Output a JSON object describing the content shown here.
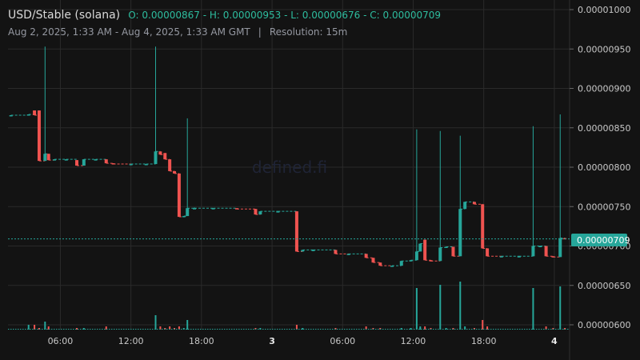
{
  "header": {
    "symbol": "USD/Stable (solana)",
    "ohlc": "O: 0.00000867 - H: 0.00000953 - L: 0.00000676 - C: 0.00000709",
    "range": "Aug 2, 2025, 1:33 AM - Aug 4, 2025, 1:33 AM GMT",
    "separator": "|",
    "resolution": "Resolution: 15m"
  },
  "watermark": "defined.fi",
  "colors": {
    "up": "#26a69a",
    "down": "#ef5350",
    "background": "#131313",
    "grid": "#2a2a2a"
  },
  "chart_data": {
    "type": "candlestick",
    "x_tick_labels": [
      "06:00",
      "12:00",
      "18:00",
      "3",
      "06:00",
      "12:00",
      "18:00",
      "4"
    ],
    "x_tick_hours": [
      6,
      12,
      18,
      24,
      30,
      36,
      42,
      48
    ],
    "y_tick_labels": [
      "0.00000600",
      "0.00000650",
      "0.00000700",
      "0.00000750",
      "0.00000800",
      "0.00000850",
      "0.00000900",
      "0.00000950",
      "0.00001000"
    ],
    "y_ticks": [
      6e-06,
      6.5e-06,
      7e-06,
      7.5e-06,
      8e-06,
      8.5e-06,
      9e-06,
      9.5e-06,
      1e-05
    ],
    "ylim": [
      5.93e-06,
      1e-05
    ],
    "xlim_hours": [
      1.55,
      49.3
    ],
    "last_price_label": "0.00000709",
    "last_price": 7.09e-06,
    "candles": [
      {
        "t": 1.8,
        "o": 8.66e-06,
        "h": 8.66e-06,
        "l": 8.66e-06,
        "c": 8.66e-06,
        "v": 0
      },
      {
        "t": 3.3,
        "o": 8.66e-06,
        "h": 8.67e-06,
        "l": 8.66e-06,
        "c": 8.67e-06,
        "v": 0.3
      },
      {
        "t": 3.8,
        "o": 8.72e-06,
        "h": 8.72e-06,
        "l": 8.66e-06,
        "c": 8.66e-06,
        "v": 0.3
      },
      {
        "t": 4.2,
        "o": 8.72e-06,
        "h": 8.72e-06,
        "l": 8.08e-06,
        "c": 8.08e-06,
        "v": 0.1
      },
      {
        "t": 4.7,
        "o": 8.08e-06,
        "h": 9.53e-06,
        "l": 8.08e-06,
        "c": 8.17e-06,
        "v": 0.5
      },
      {
        "t": 5.0,
        "o": 8.17e-06,
        "h": 8.17e-06,
        "l": 8.09e-06,
        "c": 8.09e-06,
        "v": 0.2
      },
      {
        "t": 5.5,
        "o": 8.09e-06,
        "h": 8.1e-06,
        "l": 8.09e-06,
        "c": 8.1e-06,
        "v": 0
      },
      {
        "t": 6.5,
        "o": 8.1e-06,
        "h": 8.1e-06,
        "l": 8.1e-06,
        "c": 8.1e-06,
        "v": 0
      },
      {
        "t": 7.4,
        "o": 8.09e-06,
        "h": 8.09e-06,
        "l": 8.02e-06,
        "c": 8.02e-06,
        "v": 0.1
      },
      {
        "t": 8.0,
        "o": 8.02e-06,
        "h": 8.1e-06,
        "l": 8.02e-06,
        "c": 8.1e-06,
        "v": 0.1
      },
      {
        "t": 9.0,
        "o": 8.1e-06,
        "h": 8.1e-06,
        "l": 8.1e-06,
        "c": 8.1e-06,
        "v": 0
      },
      {
        "t": 9.9,
        "o": 8.1e-06,
        "h": 8.1e-06,
        "l": 8.05e-06,
        "c": 8.05e-06,
        "v": 0.2
      },
      {
        "t": 10.5,
        "o": 8.05e-06,
        "h": 8.05e-06,
        "l": 8.04e-06,
        "c": 8.04e-06,
        "v": 0
      },
      {
        "t": 12.0,
        "o": 8.04e-06,
        "h": 8.04e-06,
        "l": 8.04e-06,
        "c": 8.04e-06,
        "v": 0
      },
      {
        "t": 13.3,
        "o": 8.04e-06,
        "h": 8.04e-06,
        "l": 8.04e-06,
        "c": 8.04e-06,
        "v": 0
      },
      {
        "t": 14.1,
        "o": 8.04e-06,
        "h": 9.53e-06,
        "l": 8.04e-06,
        "c": 8.2e-06,
        "v": 0.9
      },
      {
        "t": 14.5,
        "o": 8.2e-06,
        "h": 8.2e-06,
        "l": 8.16e-06,
        "c": 8.16e-06,
        "v": 0.2
      },
      {
        "t": 14.9,
        "o": 8.18e-06,
        "h": 8.18e-06,
        "l": 8.1e-06,
        "c": 8.1e-06,
        "v": 0.1
      },
      {
        "t": 15.3,
        "o": 8.1e-06,
        "h": 8.1e-06,
        "l": 7.95e-06,
        "c": 7.95e-06,
        "v": 0.2
      },
      {
        "t": 15.7,
        "o": 7.95e-06,
        "h": 7.95e-06,
        "l": 7.92e-06,
        "c": 7.92e-06,
        "v": 0.1
      },
      {
        "t": 16.1,
        "o": 7.92e-06,
        "h": 7.92e-06,
        "l": 7.37e-06,
        "c": 7.37e-06,
        "v": 0.2
      },
      {
        "t": 16.5,
        "o": 7.37e-06,
        "h": 7.38e-06,
        "l": 7.37e-06,
        "c": 7.38e-06,
        "v": 0.1
      },
      {
        "t": 16.8,
        "o": 7.38e-06,
        "h": 8.62e-06,
        "l": 7.38e-06,
        "c": 7.48e-06,
        "v": 0.6
      },
      {
        "t": 17.4,
        "o": 7.48e-06,
        "h": 7.49e-06,
        "l": 7.48e-06,
        "c": 7.48e-06,
        "v": 0
      },
      {
        "t": 19.0,
        "o": 7.48e-06,
        "h": 7.48e-06,
        "l": 7.48e-06,
        "c": 7.48e-06,
        "v": 0
      },
      {
        "t": 21.0,
        "o": 7.48e-06,
        "h": 7.48e-06,
        "l": 7.47e-06,
        "c": 7.47e-06,
        "v": 0
      },
      {
        "t": 22.6,
        "o": 7.47e-06,
        "h": 7.47e-06,
        "l": 7.4e-06,
        "c": 7.4e-06,
        "v": 0.1
      },
      {
        "t": 23.0,
        "o": 7.4e-06,
        "h": 7.44e-06,
        "l": 7.4e-06,
        "c": 7.44e-06,
        "v": 0.1
      },
      {
        "t": 24.5,
        "o": 7.44e-06,
        "h": 7.44e-06,
        "l": 7.44e-06,
        "c": 7.44e-06,
        "v": 0
      },
      {
        "t": 26.1,
        "o": 7.44e-06,
        "h": 7.44e-06,
        "l": 6.93e-06,
        "c": 6.93e-06,
        "v": 0.3
      },
      {
        "t": 26.6,
        "o": 6.93e-06,
        "h": 6.95e-06,
        "l": 6.93e-06,
        "c": 6.95e-06,
        "v": 0.1
      },
      {
        "t": 27.5,
        "o": 6.95e-06,
        "h": 6.95e-06,
        "l": 6.95e-06,
        "c": 6.95e-06,
        "v": 0
      },
      {
        "t": 29.4,
        "o": 6.95e-06,
        "h": 6.95e-06,
        "l": 6.9e-06,
        "c": 6.9e-06,
        "v": 0.1
      },
      {
        "t": 30.5,
        "o": 6.9e-06,
        "h": 6.9e-06,
        "l": 6.9e-06,
        "c": 6.9e-06,
        "v": 0
      },
      {
        "t": 32.0,
        "o": 6.9e-06,
        "h": 6.9e-06,
        "l": 6.85e-06,
        "c": 6.85e-06,
        "v": 0.2
      },
      {
        "t": 32.6,
        "o": 6.85e-06,
        "h": 6.85e-06,
        "l": 6.79e-06,
        "c": 6.79e-06,
        "v": 0.1
      },
      {
        "t": 33.2,
        "o": 6.79e-06,
        "h": 6.79e-06,
        "l": 6.75e-06,
        "c": 6.75e-06,
        "v": 0.1
      },
      {
        "t": 34.2,
        "o": 6.75e-06,
        "h": 6.75e-06,
        "l": 6.75e-06,
        "c": 6.75e-06,
        "v": 0
      },
      {
        "t": 35.0,
        "o": 6.75e-06,
        "h": 6.81e-06,
        "l": 6.75e-06,
        "c": 6.81e-06,
        "v": 0.1
      },
      {
        "t": 35.8,
        "o": 6.81e-06,
        "h": 6.82e-06,
        "l": 6.81e-06,
        "c": 6.82e-06,
        "v": 0.1
      },
      {
        "t": 36.3,
        "o": 6.82e-06,
        "h": 8.48e-06,
        "l": 6.82e-06,
        "c": 6.93e-06,
        "v": 2.6
      },
      {
        "t": 36.6,
        "o": 6.93e-06,
        "h": 7.03e-06,
        "l": 6.93e-06,
        "c": 7.03e-06,
        "v": 0.2
      },
      {
        "t": 37.0,
        "o": 7.08e-06,
        "h": 7.08e-06,
        "l": 6.82e-06,
        "c": 6.82e-06,
        "v": 0.2
      },
      {
        "t": 37.5,
        "o": 6.82e-06,
        "h": 6.82e-06,
        "l": 6.81e-06,
        "c": 6.81e-06,
        "v": 0.1
      },
      {
        "t": 38.3,
        "o": 6.81e-06,
        "h": 8.46e-06,
        "l": 6.81e-06,
        "c": 6.98e-06,
        "v": 2.8
      },
      {
        "t": 38.8,
        "o": 6.98e-06,
        "h": 6.99e-06,
        "l": 6.98e-06,
        "c": 6.99e-06,
        "v": 0.1
      },
      {
        "t": 39.4,
        "o": 6.99e-06,
        "h": 6.99e-06,
        "l": 6.87e-06,
        "c": 6.87e-06,
        "v": 0.1
      },
      {
        "t": 40.0,
        "o": 6.87e-06,
        "h": 8.4e-06,
        "l": 6.87e-06,
        "c": 7.47e-06,
        "v": 3.0
      },
      {
        "t": 40.4,
        "o": 7.47e-06,
        "h": 7.56e-06,
        "l": 7.47e-06,
        "c": 7.56e-06,
        "v": 0.2
      },
      {
        "t": 41.2,
        "o": 7.56e-06,
        "h": 7.56e-06,
        "l": 7.53e-06,
        "c": 7.53e-06,
        "v": 0.1
      },
      {
        "t": 41.9,
        "o": 7.53e-06,
        "h": 7.53e-06,
        "l": 6.97e-06,
        "c": 6.97e-06,
        "v": 0.6
      },
      {
        "t": 42.3,
        "o": 6.97e-06,
        "h": 6.97e-06,
        "l": 6.87e-06,
        "c": 6.87e-06,
        "v": 0.2
      },
      {
        "t": 43.5,
        "o": 6.87e-06,
        "h": 6.87e-06,
        "l": 6.87e-06,
        "c": 6.87e-06,
        "v": 0
      },
      {
        "t": 45.0,
        "o": 6.87e-06,
        "h": 6.87e-06,
        "l": 6.87e-06,
        "c": 6.87e-06,
        "v": 0
      },
      {
        "t": 46.2,
        "o": 6.87e-06,
        "h": 8.52e-06,
        "l": 6.87e-06,
        "c": 7e-06,
        "v": 2.6
      },
      {
        "t": 46.8,
        "o": 7e-06,
        "h": 7e-06,
        "l": 7e-06,
        "c": 7e-06,
        "v": 0
      },
      {
        "t": 47.3,
        "o": 7e-06,
        "h": 7e-06,
        "l": 6.87e-06,
        "c": 6.87e-06,
        "v": 0.2
      },
      {
        "t": 47.9,
        "o": 6.87e-06,
        "h": 6.87e-06,
        "l": 6.86e-06,
        "c": 6.86e-06,
        "v": 0.1
      },
      {
        "t": 48.5,
        "o": 6.86e-06,
        "h": 8.67e-06,
        "l": 6.86e-06,
        "c": 7.1e-06,
        "v": 2.7
      },
      {
        "t": 48.9,
        "o": 7.1e-06,
        "h": 7.1e-06,
        "l": 7.09e-06,
        "c": 7.09e-06,
        "v": 0.1
      }
    ]
  }
}
